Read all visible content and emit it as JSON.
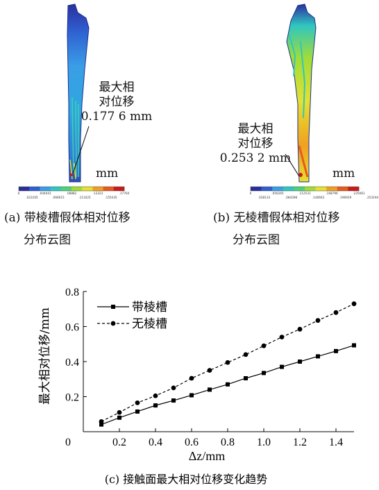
{
  "panel_a": {
    "annotation": [
      "最大相",
      "对位移",
      "0.177 6 mm"
    ],
    "unit": "mm",
    "colorbar_ticks_top": [
      "0",
      ".044441",
      ".08882",
      ".13323",
      ".17764"
    ],
    "colorbar_ticks_bottom": [
      ".022205",
      ".066615",
      ".111025",
      ".155435"
    ],
    "caption_line1": "(a) 带棱槽假体相对位移",
    "caption_line2": "分布云图"
  },
  "panel_b": {
    "annotation": [
      "最大相",
      "对位移",
      "0.253 2 mm"
    ],
    "unit": "mm",
    "colorbar_ticks_top": [
      "0",
      ".056265",
      ".112531",
      ".168796",
      ".225061"
    ],
    "colorbar_ticks_bottom": [
      ".028133",
      ".084398",
      ".140663",
      ".196929",
      ".253194"
    ],
    "caption_line1": "(b) 无棱槽假体相对位移",
    "caption_line2": "分布云图"
  },
  "colorbar_colors": [
    "#2b2f9e",
    "#2f5fd0",
    "#3a9ee6",
    "#2fc6c0",
    "#4fd07a",
    "#9fdc3a",
    "#e6e030",
    "#f0a020",
    "#e85a20",
    "#cc1a1a"
  ],
  "chart_data": {
    "type": "line",
    "xlabel": "Δz/mm",
    "ylabel": "最大相对位移/mm",
    "xlim": [
      0,
      1.5
    ],
    "ylim": [
      0,
      0.8
    ],
    "xticks": [
      0,
      0.2,
      0.4,
      0.6,
      0.8,
      1.0,
      1.2,
      1.4
    ],
    "xtick_labels": [
      "0",
      "0.2",
      "0.4",
      "0.6",
      "0.8",
      "1.0",
      "1.2",
      "1.4"
    ],
    "yticks": [
      0.2,
      0.4,
      0.6,
      0.8
    ],
    "ytick_labels": [
      "0.2",
      "0.4",
      "0.6",
      "0.8"
    ],
    "legend_position": "top-left",
    "series": [
      {
        "name": "带棱槽",
        "style": "solid",
        "marker": "square",
        "x": [
          0.1,
          0.2,
          0.3,
          0.4,
          0.5,
          0.6,
          0.7,
          0.8,
          0.9,
          1.0,
          1.1,
          1.2,
          1.3,
          1.4,
          1.5
        ],
        "y": [
          0.041,
          0.08,
          0.115,
          0.15,
          0.178,
          0.208,
          0.24,
          0.27,
          0.305,
          0.335,
          0.37,
          0.4,
          0.43,
          0.46,
          0.493
        ]
      },
      {
        "name": "无棱槽",
        "style": "dashed",
        "marker": "circle",
        "x": [
          0.1,
          0.2,
          0.3,
          0.4,
          0.5,
          0.6,
          0.7,
          0.8,
          0.9,
          1.0,
          1.1,
          1.2,
          1.3,
          1.4,
          1.5
        ],
        "y": [
          0.058,
          0.11,
          0.165,
          0.205,
          0.25,
          0.305,
          0.35,
          0.395,
          0.44,
          0.49,
          0.54,
          0.585,
          0.635,
          0.68,
          0.73
        ]
      }
    ],
    "caption": "(c) 接触面最大相对位移变化趋势"
  }
}
